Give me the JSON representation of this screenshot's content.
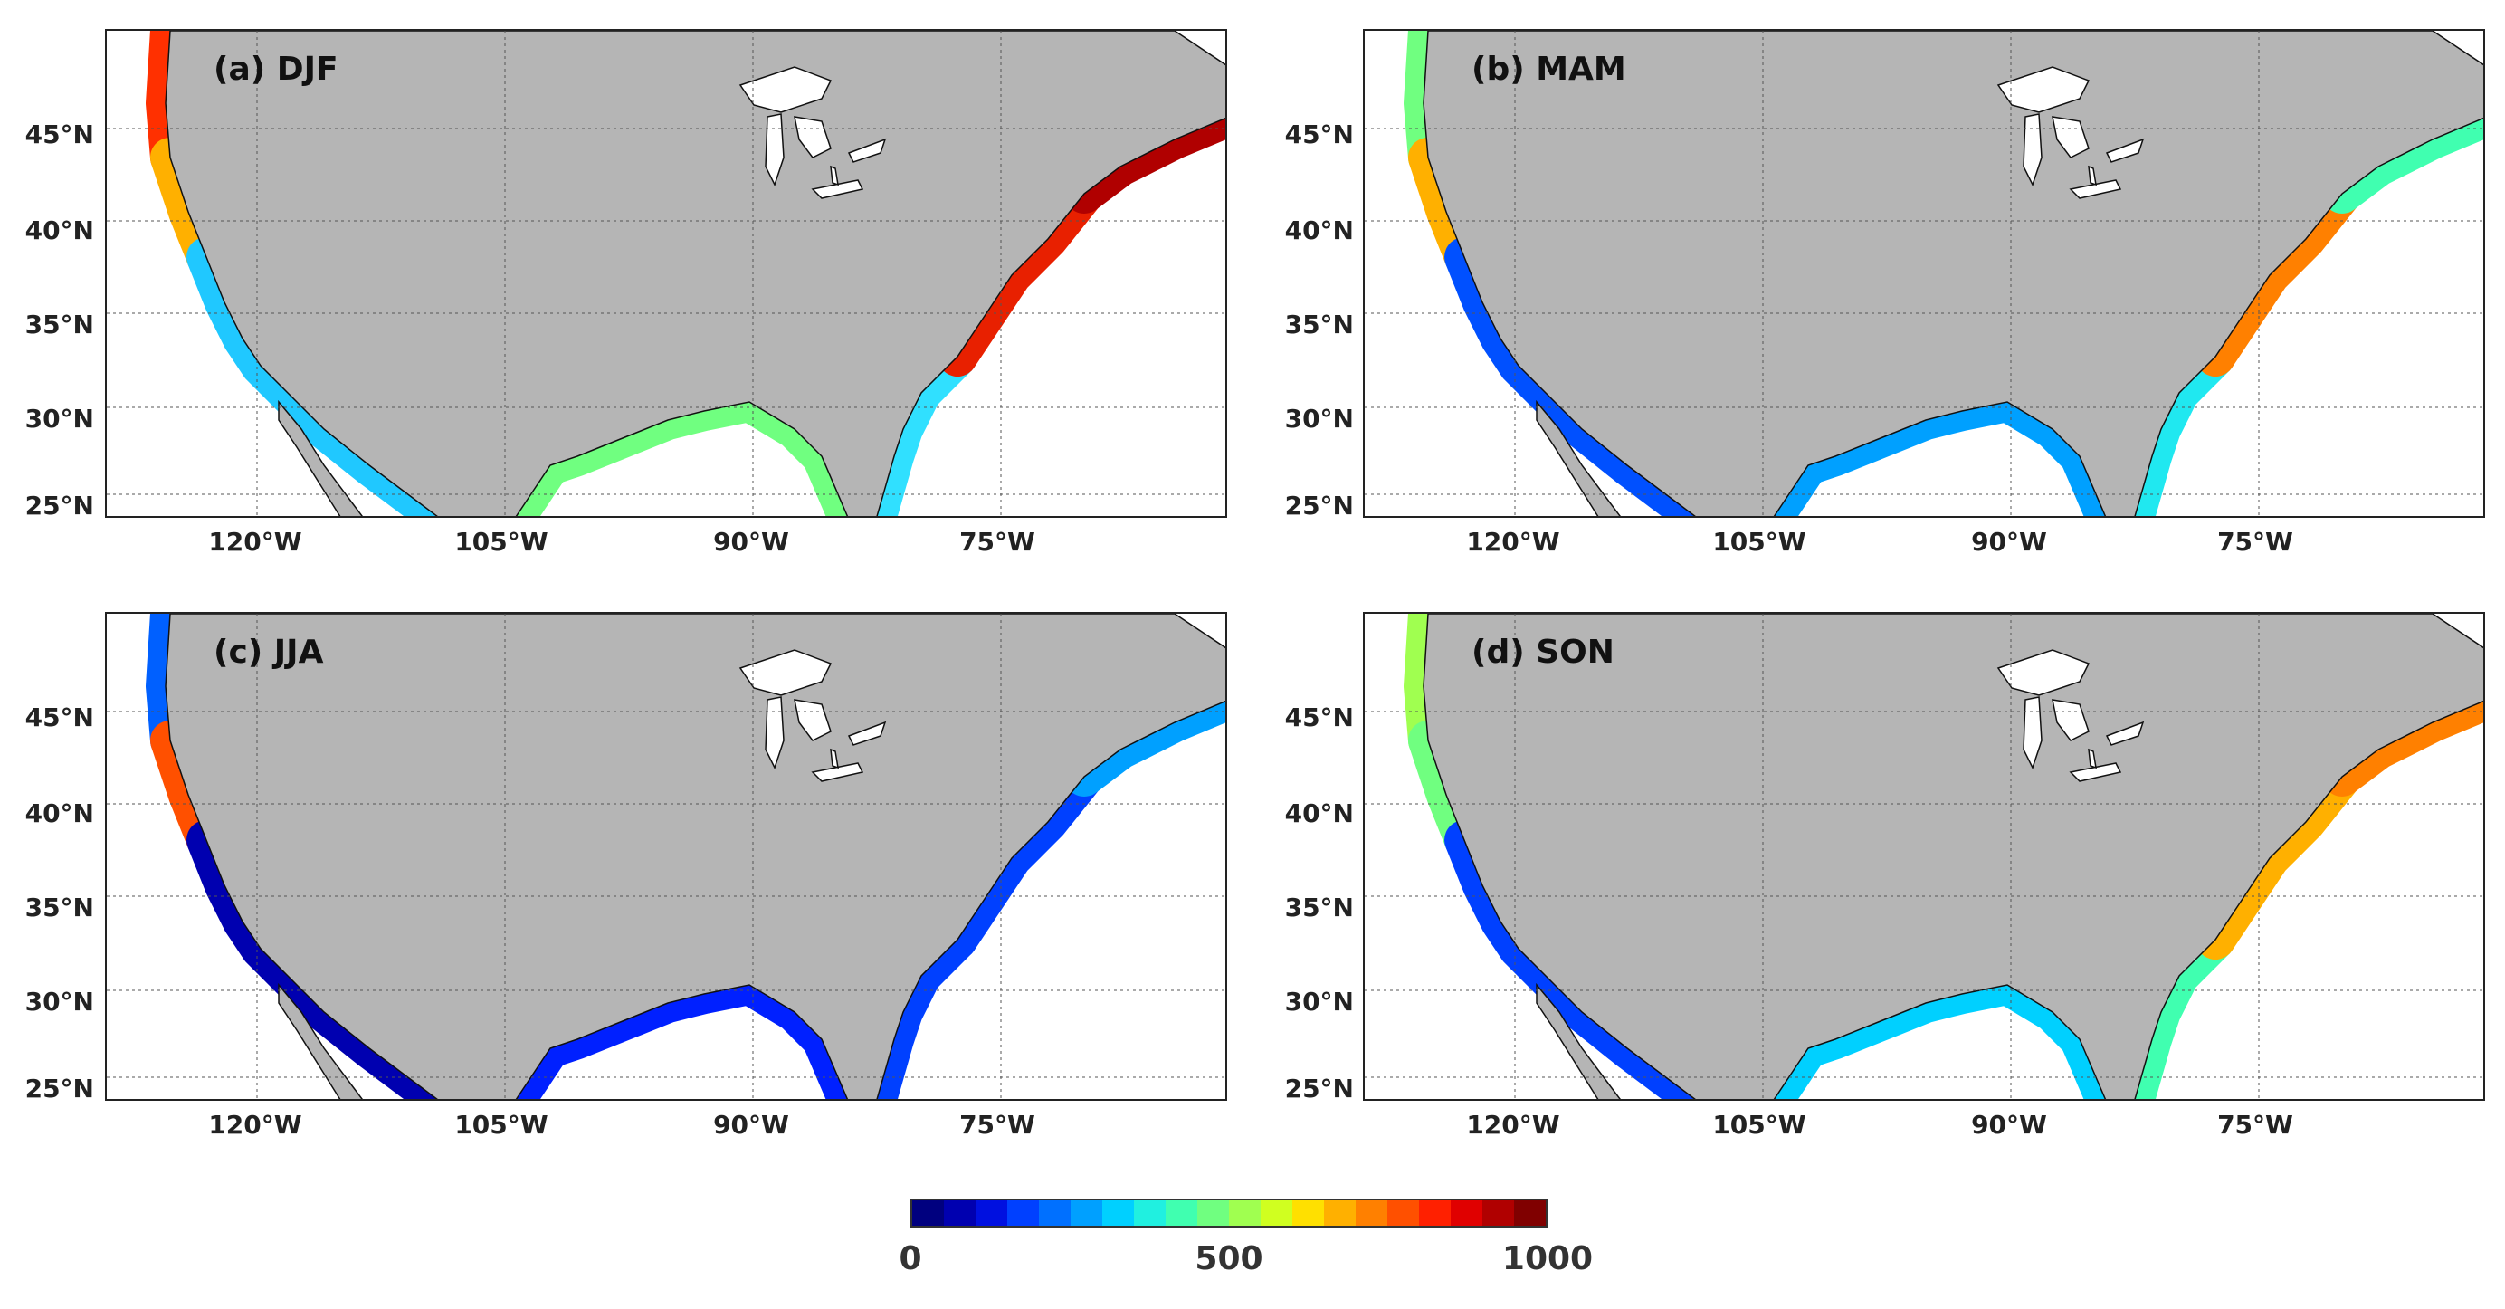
{
  "panels": [
    {
      "label": "(a) DJF"
    },
    {
      "label": "(b) MAM"
    },
    {
      "label": "(c) JJA"
    },
    {
      "label": "(d) SON"
    }
  ],
  "lat_ticks": [
    "45°N",
    "40°N",
    "35°N",
    "30°N",
    "25°N"
  ],
  "lon_ticks": [
    "120°W",
    "105°W",
    "90°W",
    "75°W"
  ],
  "colorbar": {
    "ticks": [
      "0",
      "500",
      "1000"
    ],
    "colors": [
      "#00007f",
      "#0000b0",
      "#0010e0",
      "#0040ff",
      "#0070ff",
      "#00a0ff",
      "#00d0ff",
      "#20f0e0",
      "#40ffb0",
      "#70ff80",
      "#a0ff50",
      "#d0ff20",
      "#ffe000",
      "#ffb000",
      "#ff8000",
      "#ff5000",
      "#ff2000",
      "#e00000",
      "#b00000",
      "#800000"
    ]
  },
  "colors": {
    "land": "#b5b5b5",
    "ocean": "#ffffff",
    "lakes": "#ffffff"
  }
}
